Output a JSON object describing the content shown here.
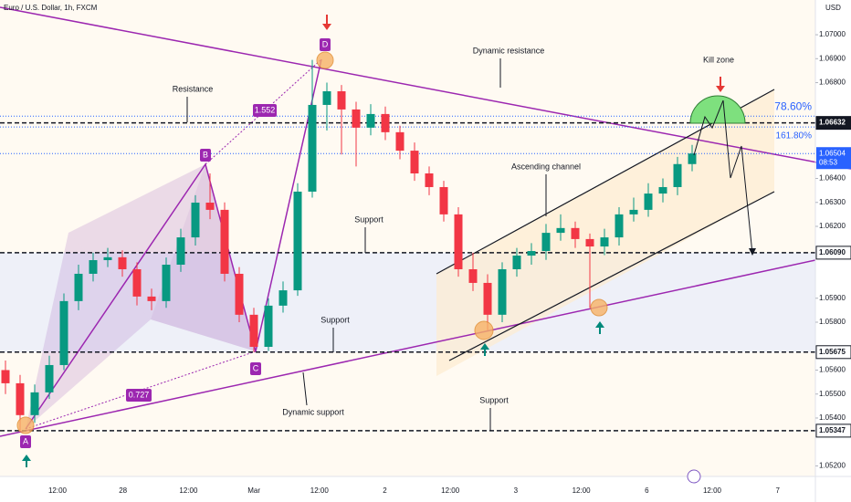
{
  "header": {
    "title": "Euro / U.S. Dollar, 1h, FXCM",
    "currency": "USD"
  },
  "chart_data": {
    "type": "candlestick",
    "ylim": [
      1.05156,
      1.07145
    ],
    "yticks": [
      {
        "value": 1.07,
        "label": "1.07000"
      },
      {
        "value": 1.069,
        "label": "1.06900"
      },
      {
        "value": 1.068,
        "label": "1.06800"
      },
      {
        "value": 1.064,
        "label": "1.06400"
      },
      {
        "value": 1.063,
        "label": "1.06300"
      },
      {
        "value": 1.062,
        "label": "1.06200"
      },
      {
        "value": 1.059,
        "label": "1.05900"
      },
      {
        "value": 1.058,
        "label": "1.05800"
      },
      {
        "value": 1.056,
        "label": "1.05600"
      },
      {
        "value": 1.055,
        "label": "1.05500"
      },
      {
        "value": 1.054,
        "label": "1.05400"
      },
      {
        "value": 1.052,
        "label": "1.05200"
      }
    ],
    "xlabels": [
      "12:00",
      "28",
      "12:00",
      "Mar",
      "12:00",
      "2",
      "12:00",
      "3",
      "12:00",
      "6",
      "12:00",
      "7"
    ],
    "up_color": "#089981",
    "down_color": "#f23645",
    "open": [
      1.056,
      1.05545,
      1.05412,
      1.05507,
      1.05621,
      1.05888,
      1.06002,
      1.06059,
      1.06071,
      1.06021,
      1.05907,
      1.05888,
      1.0604,
      1.06154,
      1.06299,
      1.06269,
      1.06002,
      1.05831,
      1.05697,
      1.05869,
      1.05933,
      1.06345,
      1.06707,
      1.06764,
      1.06688,
      1.06612,
      1.06669,
      1.06593,
      1.06516,
      1.06421,
      1.06364,
      1.0625,
      1.06021,
      1.05964,
      1.05831,
      1.06021,
      1.06078,
      1.06097,
      1.06173,
      1.06193,
      1.06147,
      1.06116,
      1.06154,
      1.0625,
      1.06269,
      1.06337,
      1.06364,
      1.0646
    ],
    "high": [
      1.0564,
      1.0558,
      1.0554,
      1.0566,
      1.0592,
      1.0604,
      1.0609,
      1.0611,
      1.061,
      1.0605,
      1.0594,
      1.0607,
      1.0619,
      1.0633,
      1.06421,
      1.063,
      1.0603,
      1.0586,
      1.059,
      1.0597,
      1.0638,
      1.06895,
      1.068,
      1.0679,
      1.0672,
      1.0671,
      1.067,
      1.0662,
      1.0655,
      1.0645,
      1.0639,
      1.0628,
      1.0609,
      1.06,
      1.0605,
      1.0611,
      1.0613,
      1.0621,
      1.0625,
      1.0622,
      1.0617,
      1.0619,
      1.0628,
      1.0632,
      1.0638,
      1.064,
      1.0649,
      1.0654
    ],
    "low": [
      1.055,
      1.05347,
      1.0538,
      1.0548,
      1.056,
      1.0585,
      1.0597,
      1.0603,
      1.0599,
      1.0587,
      1.0585,
      1.0586,
      1.0601,
      1.0612,
      1.0623,
      1.0597,
      1.058,
      1.05675,
      1.0568,
      1.0584,
      1.0591,
      1.0632,
      1.066,
      1.065,
      1.0645,
      1.0658,
      1.0656,
      1.0648,
      1.0639,
      1.0633,
      1.0622,
      1.0599,
      1.0593,
      1.05766,
      1.058,
      1.0599,
      1.0604,
      1.0606,
      1.0614,
      1.0611,
      1.0586,
      1.0608,
      1.0612,
      1.0622,
      1.0624,
      1.063,
      1.0633,
      1.0643
    ],
    "close": [
      1.05545,
      1.05412,
      1.05507,
      1.05621,
      1.05888,
      1.06002,
      1.06059,
      1.06071,
      1.06021,
      1.05907,
      1.05888,
      1.0604,
      1.06154,
      1.06299,
      1.06269,
      1.06002,
      1.05831,
      1.05697,
      1.05869,
      1.05933,
      1.06345,
      1.06707,
      1.06764,
      1.06688,
      1.06612,
      1.06669,
      1.06593,
      1.06516,
      1.06421,
      1.06364,
      1.0625,
      1.06021,
      1.05964,
      1.05831,
      1.06021,
      1.06078,
      1.06097,
      1.06173,
      1.06193,
      1.06147,
      1.06116,
      1.06154,
      1.0625,
      1.06269,
      1.06337,
      1.06364,
      1.0646,
      1.06504
    ],
    "levels": [
      {
        "value": 1.06632,
        "label": "1.06632"
      },
      {
        "value": 1.0609,
        "label": "1.06090"
      },
      {
        "value": 1.05675,
        "label": "1.05675"
      },
      {
        "value": 1.05347,
        "label": "1.05347"
      }
    ],
    "last_price": {
      "value": 1.06504,
      "label": "1.06504",
      "countdown": "08:53"
    },
    "fib_levels": [
      {
        "value": 1.0666,
        "label": "78.60%"
      },
      {
        "value": 1.06615,
        "label": "161.80%"
      }
    ],
    "annotations": {
      "dynamic_resistance": "Dynamic resistance",
      "resistance": "Resistance",
      "support_1": "Support",
      "support_2": "Support",
      "support_3": "Support",
      "ascending_channel": "Ascending channel",
      "kill_zone": "Kill zone",
      "dynamic_support": "Dynamic support",
      "ratio_1": "1.552",
      "ratio_2": "0.727"
    },
    "points": [
      "A",
      "B",
      "C",
      "D"
    ]
  }
}
